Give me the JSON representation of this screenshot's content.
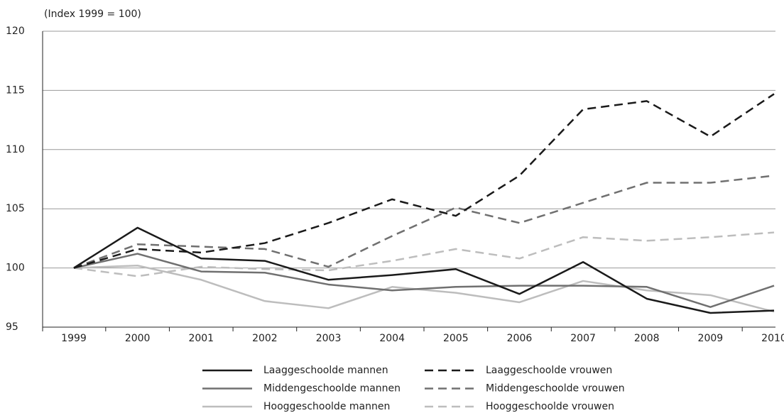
{
  "chart_data": {
    "type": "line",
    "subtitle": "(Index 1999 = 100)",
    "categories": [
      "1999",
      "2000",
      "2001",
      "2002",
      "2003",
      "2004",
      "2005",
      "2006",
      "2007",
      "2008",
      "2009",
      "2010"
    ],
    "series": [
      {
        "name": "Laaggeschoolde mannen",
        "color": "#1a1a1a",
        "dashed": false,
        "values": [
          100,
          103.4,
          100.8,
          100.6,
          99.0,
          99.4,
          99.9,
          97.8,
          100.5,
          97.4,
          96.2,
          96.4
        ]
      },
      {
        "name": "Middengeschoolde mannen",
        "color": "#707070",
        "dashed": false,
        "values": [
          100,
          101.2,
          99.7,
          99.6,
          98.6,
          98.1,
          98.4,
          98.5,
          98.5,
          98.4,
          96.7,
          98.5
        ]
      },
      {
        "name": "Hooggeschoolde mannen",
        "color": "#bdbdbd",
        "dashed": false,
        "values": [
          100,
          100.2,
          99.0,
          97.2,
          96.6,
          98.4,
          97.9,
          97.1,
          98.9,
          98.1,
          97.7,
          96.3
        ]
      },
      {
        "name": "Laaggeschoolde vrouwen",
        "color": "#1a1a1a",
        "dashed": true,
        "values": [
          100,
          101.6,
          101.3,
          102.1,
          103.8,
          105.8,
          104.4,
          107.8,
          113.4,
          114.1,
          111.1,
          114.7
        ]
      },
      {
        "name": "Middengeschoolde vrouwen",
        "color": "#707070",
        "dashed": true,
        "values": [
          100,
          102.0,
          101.8,
          101.6,
          100.1,
          102.7,
          105.1,
          103.8,
          105.5,
          107.2,
          107.2,
          107.8
        ]
      },
      {
        "name": "Hooggeschoolde vrouwen",
        "color": "#bdbdbd",
        "dashed": true,
        "values": [
          100,
          99.3,
          100.1,
          99.9,
          99.8,
          100.6,
          101.6,
          100.8,
          102.6,
          102.3,
          102.6,
          103.0
        ]
      }
    ],
    "ylim": [
      95,
      120
    ],
    "yticks": [
      95,
      100,
      105,
      110,
      115,
      120
    ],
    "grid": true
  }
}
